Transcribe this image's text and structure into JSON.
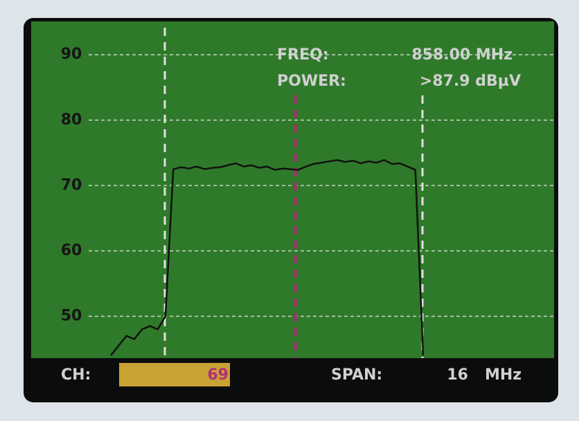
{
  "chart_data": {
    "type": "line",
    "categories": [
      null,
      null,
      null,
      null,
      null,
      null,
      null,
      null,
      null,
      null,
      null,
      null,
      null,
      null,
      null,
      null,
      null,
      null,
      null,
      null,
      null,
      null,
      null,
      null,
      null,
      null,
      null,
      null,
      null,
      null,
      null,
      null,
      null,
      null,
      null,
      null,
      null,
      null,
      null,
      null,
      null
    ],
    "values": [
      44,
      45.5,
      47,
      46.5,
      48,
      48.5,
      48,
      50,
      72.5,
      72.8,
      72.6,
      72.9,
      72.5,
      72.7,
      72.8,
      73.1,
      73.4,
      72.9,
      73.1,
      72.7,
      72.9,
      72.4,
      72.6,
      72.5,
      72.4,
      72.9,
      73.3,
      73.5,
      73.7,
      73.9,
      73.6,
      73.8,
      73.4,
      73.7,
      73.5,
      73.9,
      73.3,
      73.4,
      72.9,
      72.4,
      44
    ],
    "color": "#111111",
    "ylim": [
      43.6,
      95.1
    ],
    "yticks": [
      50,
      60,
      70,
      80,
      90
    ],
    "grid": true,
    "readouts": {
      "freq_label": "FREQ:",
      "freq_value": "858.00 MHz",
      "power_label": "POWER:",
      "power_value": ">87.9 dBµV",
      "ch_label": "CH:",
      "ch_value": "69",
      "span_label": "SPAN:",
      "span_value": "16",
      "span_unit": "MHz"
    }
  }
}
